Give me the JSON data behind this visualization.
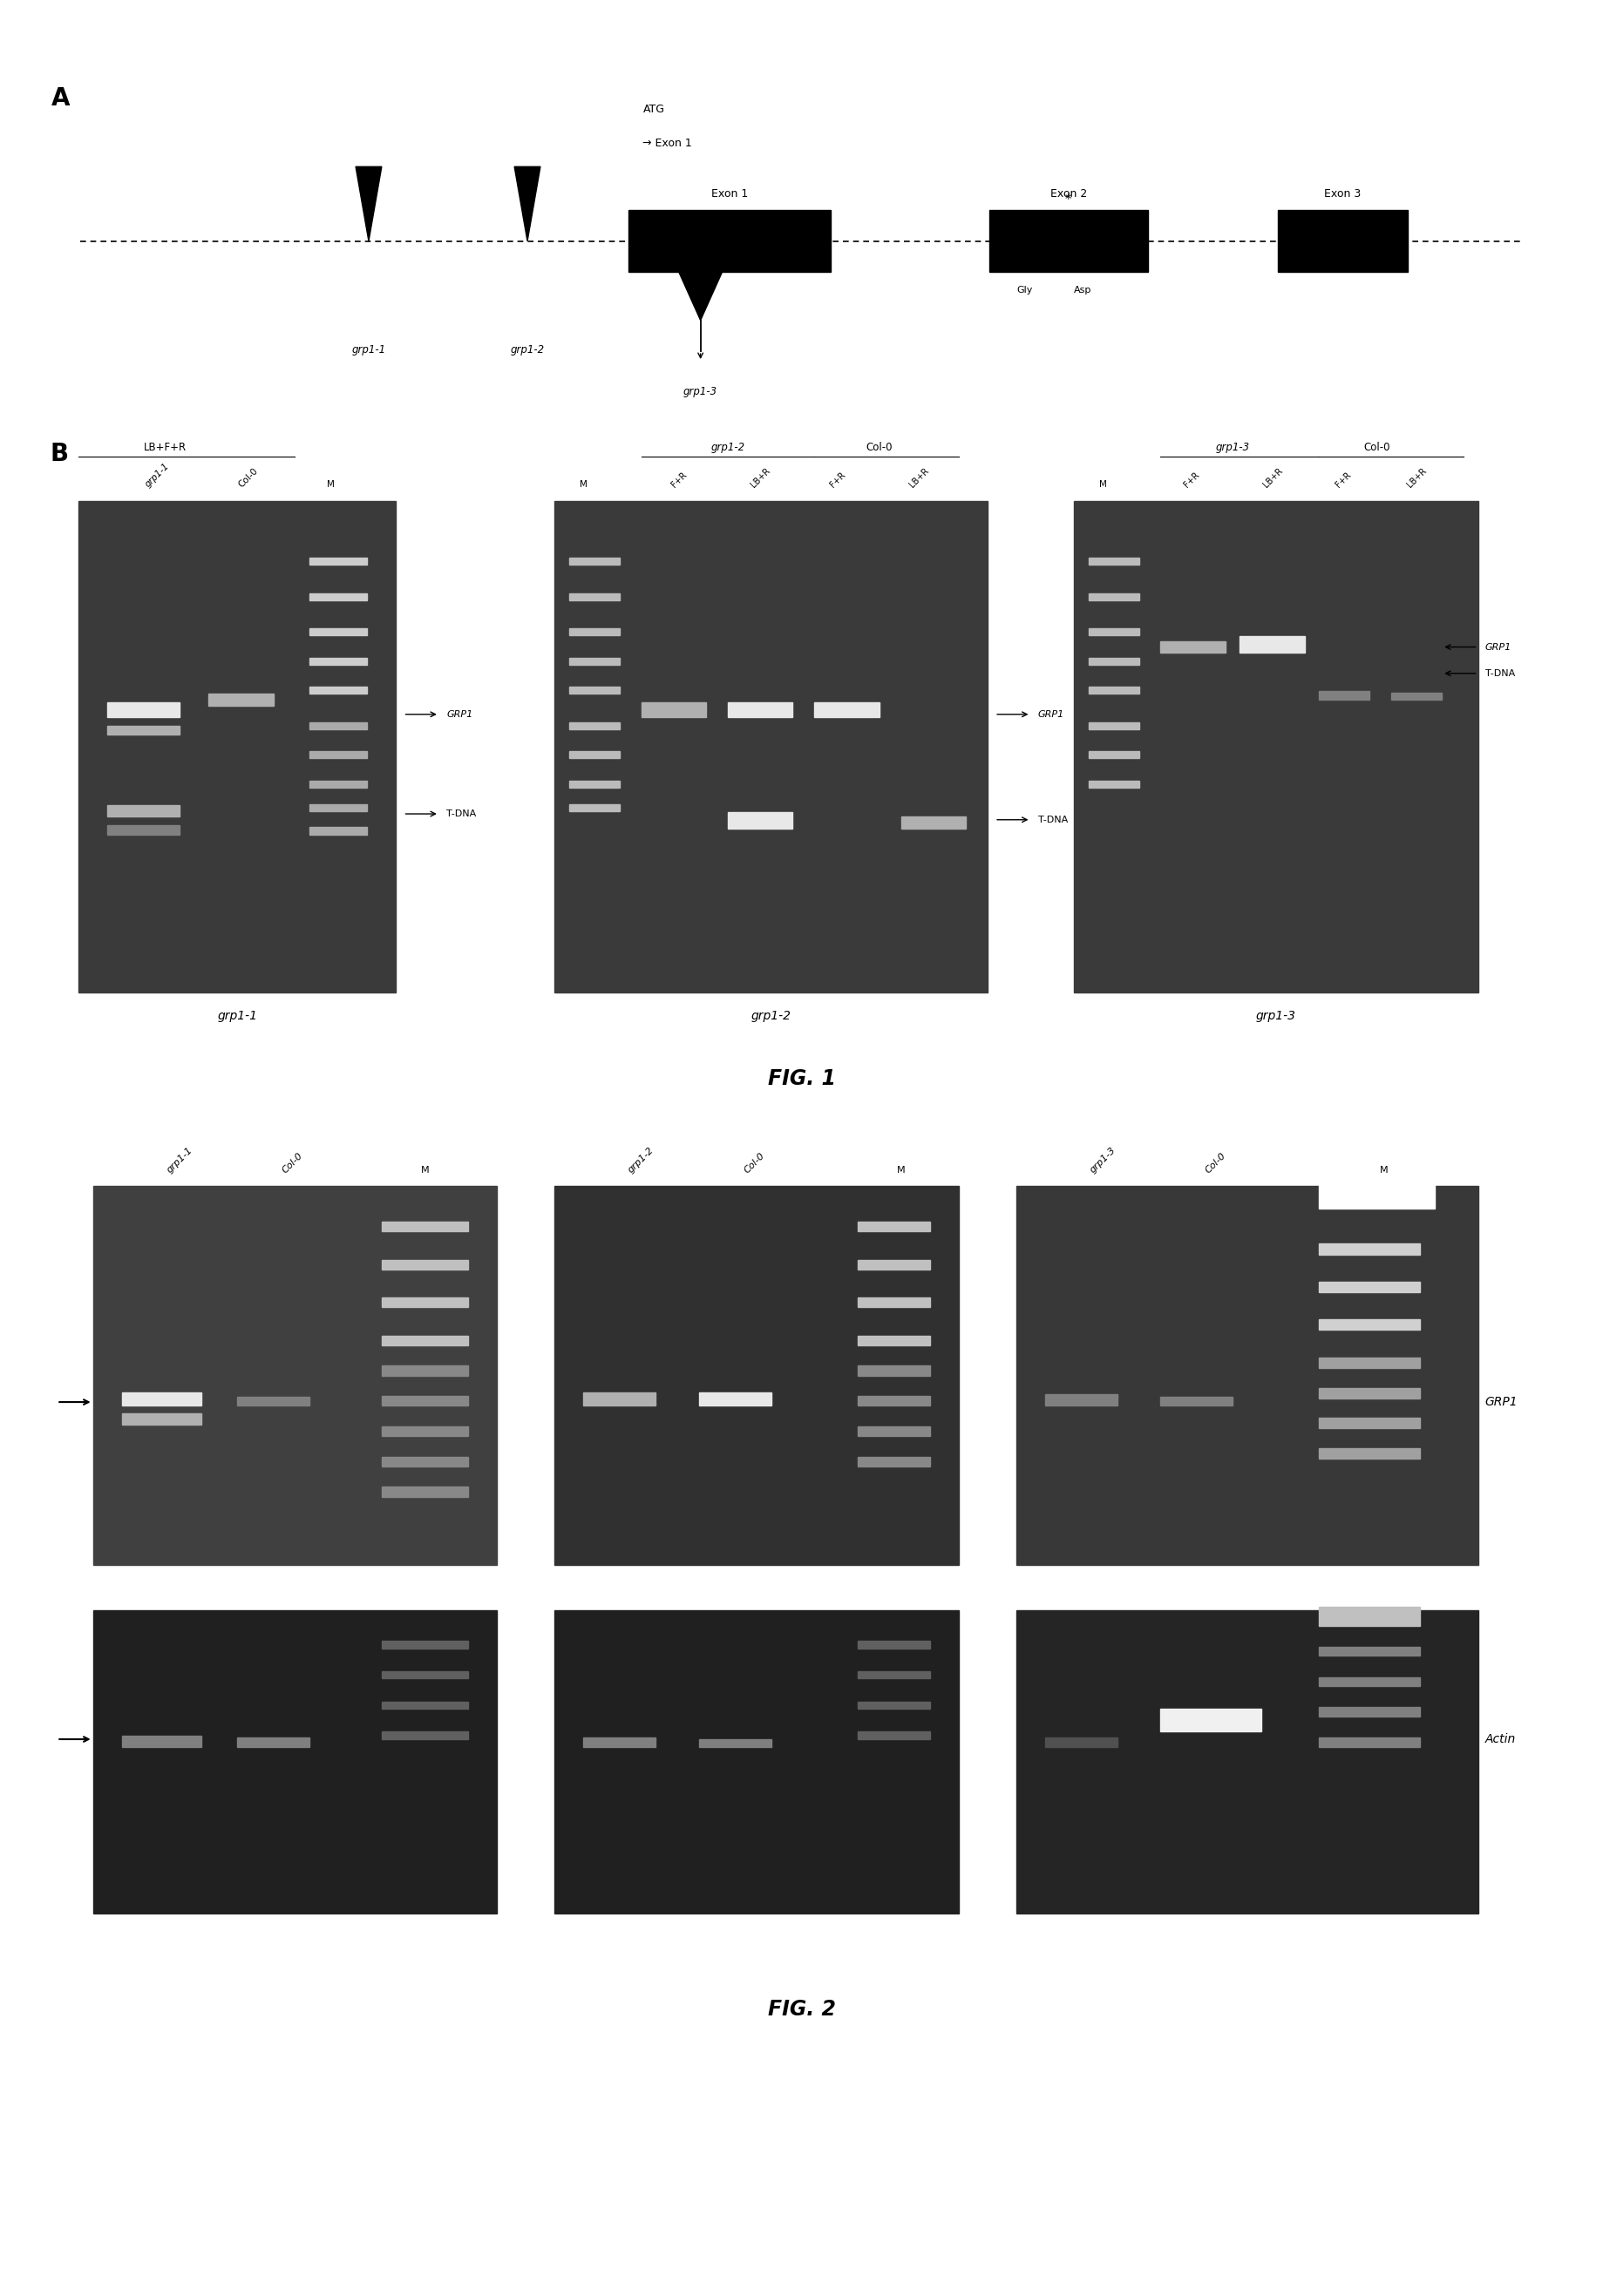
{
  "fig_width": 18.39,
  "fig_height": 26.35,
  "bg_color": "#ffffff",
  "panel_A_label": "A",
  "panel_B_label": "B",
  "fig1_label": "FIG. 1",
  "fig2_label": "FIG. 2",
  "exon1_label": "Exon 1",
  "exon2_label": "Exon 2",
  "exon3_label": "Exon 3",
  "atg_label": "ATG",
  "arrow_label": "→ Exon 1",
  "gly_label": "Gly",
  "asp_label": "Asp",
  "grp1_1_label": "grp1-1",
  "grp1_2_label": "grp1-2",
  "grp1_3_label": "grp1-3",
  "GRP1_label": "GRP1",
  "tdna_label": "T-DNA",
  "actin_label": "Actin",
  "col0_label": "Col-0",
  "LBFRlabel": "LB+F+R",
  "gel_bg": "#3a3a3a",
  "gel_bg2": "#282828",
  "band_bright": "#e8e8e8",
  "band_mid": "#b0b0b0",
  "band_dim": "#808080"
}
